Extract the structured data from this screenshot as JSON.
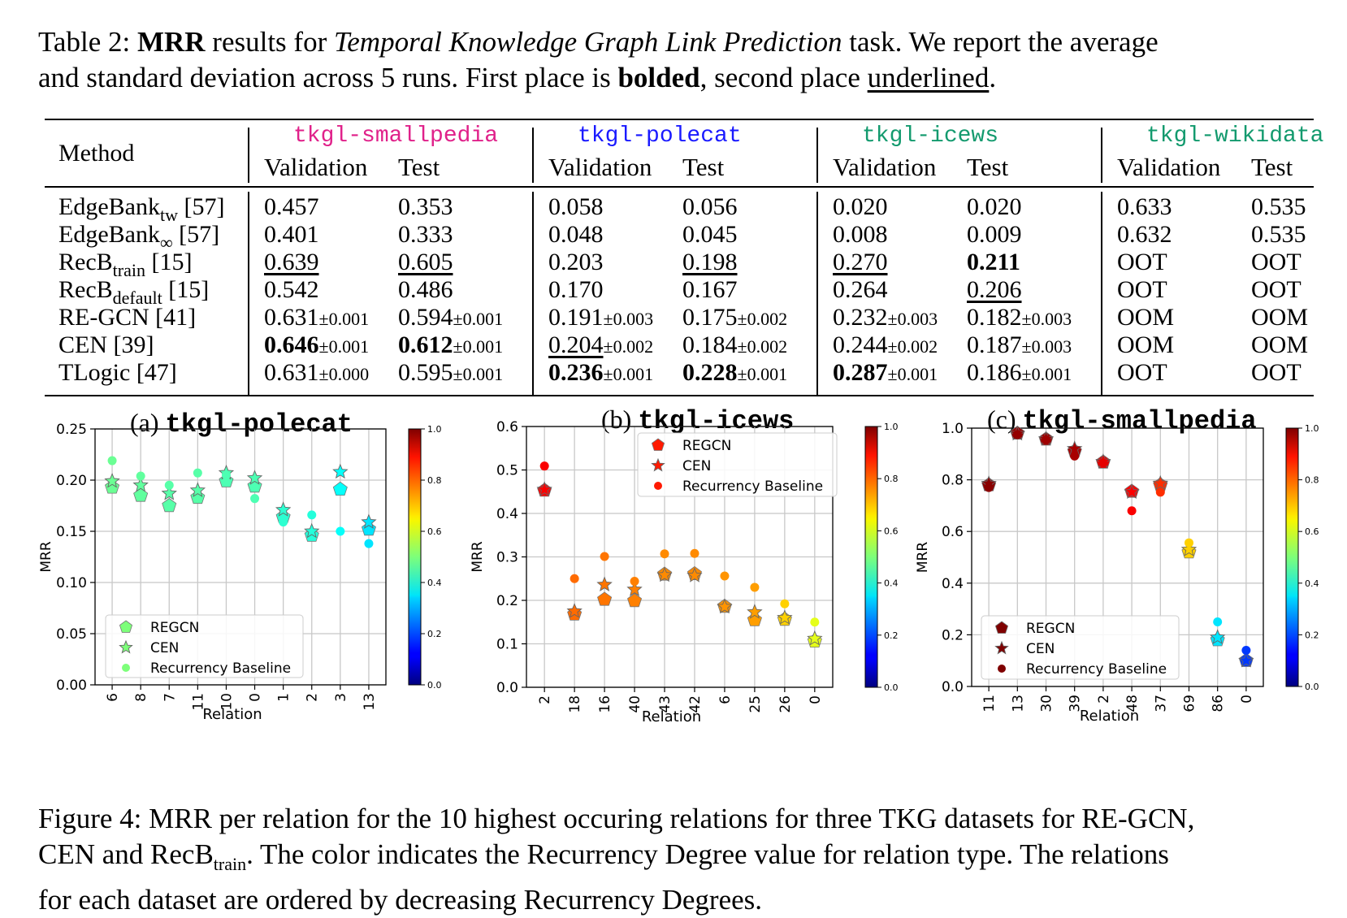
{
  "table_caption": {
    "prefix": "Table 2: ",
    "bold1": "MRR",
    "t1": " results for ",
    "italic1": "Temporal Knowledge Graph Link Prediction",
    "t2": " task. We report the average",
    "line2a": "and standard deviation across 5 runs. First place is ",
    "bold2": "bolded",
    "line2b": ", second place ",
    "underlined": "underlined",
    "line2c": "."
  },
  "table": {
    "method_header": "Method",
    "datasets": [
      {
        "name": "tkgl-smallpedia",
        "color": "#e0218a"
      },
      {
        "name": "tkgl-polecat",
        "color": "#1a1aff"
      },
      {
        "name": "tkgl-icews",
        "color": "#139a6e"
      },
      {
        "name": "tkgl-wikidata",
        "color": "#139a6e"
      }
    ],
    "val_label": "Validation",
    "test_label": "Test",
    "rows": [
      {
        "m": "EdgeBank",
        "sub": "tw",
        "ref": " [57]",
        "cells": [
          [
            "0.457",
            ""
          ],
          [
            "0.353",
            ""
          ],
          [
            "0.058",
            ""
          ],
          [
            "0.056",
            ""
          ],
          [
            "0.020",
            ""
          ],
          [
            "0.020",
            ""
          ],
          [
            "0.633",
            ""
          ],
          [
            "0.535",
            ""
          ]
        ]
      },
      {
        "m": "EdgeBank",
        "sub": "∞",
        "ref": " [57]",
        "cells": [
          [
            "0.401",
            ""
          ],
          [
            "0.333",
            ""
          ],
          [
            "0.048",
            ""
          ],
          [
            "0.045",
            ""
          ],
          [
            "0.008",
            ""
          ],
          [
            "0.009",
            ""
          ],
          [
            "0.632",
            ""
          ],
          [
            "0.535",
            ""
          ]
        ]
      },
      {
        "m": "RecB",
        "sub": "train",
        "ref": " [15]",
        "cells": [
          [
            "0.639",
            "",
            "u"
          ],
          [
            "0.605",
            "",
            "u"
          ],
          [
            "0.203",
            ""
          ],
          [
            "0.198",
            "",
            "u"
          ],
          [
            "0.270",
            "",
            "u"
          ],
          [
            "0.211",
            "",
            "b"
          ],
          [
            "OOT",
            ""
          ],
          [
            "OOT",
            ""
          ]
        ]
      },
      {
        "m": "RecB",
        "sub": "default",
        "ref": " [15]",
        "cells": [
          [
            "0.542",
            ""
          ],
          [
            "0.486",
            ""
          ],
          [
            "0.170",
            ""
          ],
          [
            "0.167",
            ""
          ],
          [
            "0.264",
            ""
          ],
          [
            "0.206",
            "",
            "u"
          ],
          [
            "OOT",
            ""
          ],
          [
            "OOT",
            ""
          ]
        ]
      },
      {
        "m": "RE-GCN",
        "sub": "",
        "ref": " [41]",
        "cells": [
          [
            "0.631",
            "±0.001"
          ],
          [
            "0.594",
            "±0.001"
          ],
          [
            "0.191",
            "±0.003"
          ],
          [
            "0.175",
            "±0.002"
          ],
          [
            "0.232",
            "±0.003"
          ],
          [
            "0.182",
            "±0.003"
          ],
          [
            "OOM",
            ""
          ],
          [
            "OOM",
            ""
          ]
        ]
      },
      {
        "m": "CEN",
        "sub": "",
        "ref": " [39]",
        "cells": [
          [
            "0.646",
            "±0.001",
            "b"
          ],
          [
            "0.612",
            "±0.001",
            "b"
          ],
          [
            "0.204",
            "±0.002",
            "u"
          ],
          [
            "0.184",
            "±0.002"
          ],
          [
            "0.244",
            "±0.002"
          ],
          [
            "0.187",
            "±0.003"
          ],
          [
            "OOM",
            ""
          ],
          [
            "OOM",
            ""
          ]
        ]
      },
      {
        "m": "TLogic",
        "sub": "",
        "ref": " [47]",
        "cells": [
          [
            "0.631",
            "±0.000"
          ],
          [
            "0.595",
            "±0.001"
          ],
          [
            "0.236",
            "±0.001",
            "b"
          ],
          [
            "0.228",
            "±0.001",
            "b"
          ],
          [
            "0.287",
            "±0.001",
            "b"
          ],
          [
            "0.186",
            "±0.001"
          ],
          [
            "OOT",
            ""
          ],
          [
            "OOT",
            ""
          ]
        ]
      }
    ]
  },
  "figures": {
    "a": {
      "label": "(a) ",
      "dataset": "tkgl-polecat"
    },
    "b": {
      "label": "(b) ",
      "dataset": "tkgl-icews"
    },
    "c": {
      "label": "(c) ",
      "dataset": "tkgl-smallpedia"
    }
  },
  "chart_data": [
    {
      "type": "scatter",
      "title": "(a) tkgl-polecat",
      "xlabel": "Relation",
      "ylabel": "MRR",
      "ylim": [
        0,
        0.25
      ],
      "yticks": [
        "0.00",
        "0.05",
        "0.10",
        "0.15",
        "0.20",
        "0.25"
      ],
      "categories": [
        "6",
        "8",
        "7",
        "11",
        "10",
        "0",
        "1",
        "2",
        "3",
        "13"
      ],
      "series": [
        {
          "name": "REGCN",
          "values": [
            0.193,
            0.185,
            0.175,
            0.183,
            0.199,
            0.194,
            0.164,
            0.146,
            0.191,
            0.152
          ]
        },
        {
          "name": "CEN",
          "values": [
            0.199,
            0.195,
            0.187,
            0.19,
            0.207,
            0.202,
            0.171,
            0.15,
            0.208,
            0.159
          ]
        },
        {
          "name": "Recurrency Baseline",
          "values": [
            0.219,
            0.204,
            0.195,
            0.207,
            0.205,
            0.182,
            0.159,
            0.166,
            0.15,
            0.138
          ]
        }
      ],
      "recurrency_degree": [
        0.48,
        0.47,
        0.46,
        0.46,
        0.45,
        0.45,
        0.42,
        0.41,
        0.38,
        0.35
      ],
      "colorbar": {
        "ticks": [
          "0.0",
          "0.2",
          "0.4",
          "0.6",
          "0.8",
          "1.0"
        ]
      },
      "legend": "lower-left"
    },
    {
      "type": "scatter",
      "title": "(b) tkgl-icews",
      "xlabel": "Relation",
      "ylabel": "MRR",
      "ylim": [
        0,
        0.6
      ],
      "yticks": [
        "0.0",
        "0.1",
        "0.2",
        "0.3",
        "0.4",
        "0.5",
        "0.6"
      ],
      "categories": [
        "2",
        "18",
        "16",
        "40",
        "43",
        "42",
        "6",
        "25",
        "26",
        "0"
      ],
      "series": [
        {
          "name": "REGCN",
          "values": [
            0.453,
            0.168,
            0.202,
            0.199,
            0.26,
            0.261,
            0.186,
            0.155,
            0.156,
            0.106
          ]
        },
        {
          "name": "CEN",
          "values": [
            0.455,
            0.175,
            0.236,
            0.225,
            0.258,
            0.257,
            0.185,
            0.173,
            0.16,
            0.112
          ]
        },
        {
          "name": "Recurrency Baseline",
          "values": [
            0.509,
            0.25,
            0.301,
            0.244,
            0.307,
            0.308,
            0.256,
            0.23,
            0.192,
            0.15
          ]
        }
      ],
      "recurrency_degree": [
        0.88,
        0.77,
        0.76,
        0.75,
        0.74,
        0.74,
        0.73,
        0.72,
        0.67,
        0.6
      ],
      "colorbar": {
        "ticks": [
          "0.0",
          "0.2",
          "0.4",
          "0.6",
          "0.8",
          "1.0"
        ]
      },
      "legend": "top-right"
    },
    {
      "type": "scatter",
      "title": "(c) tkgl-smallpedia",
      "xlabel": "Relation",
      "ylabel": "MRR",
      "ylim": [
        0,
        1.0
      ],
      "yticks": [
        "0.0",
        "0.2",
        "0.4",
        "0.6",
        "0.8",
        "1.0"
      ],
      "categories": [
        "11",
        "13",
        "30",
        "39",
        "2",
        "48",
        "37",
        "69",
        "86",
        "0"
      ],
      "series": [
        {
          "name": "REGCN",
          "values": [
            0.78,
            0.98,
            0.957,
            0.91,
            0.868,
            0.755,
            0.78,
            0.52,
            0.18,
            0.1
          ]
        },
        {
          "name": "CEN",
          "values": [
            0.785,
            0.978,
            0.958,
            0.92,
            0.87,
            0.752,
            0.786,
            0.53,
            0.19,
            0.1
          ]
        },
        {
          "name": "Recurrency Baseline",
          "values": [
            0.77,
            0.975,
            0.955,
            0.892,
            0.865,
            0.68,
            0.752,
            0.556,
            0.25,
            0.14
          ]
        }
      ],
      "recurrency_degree": [
        0.99,
        0.98,
        0.97,
        0.96,
        0.9,
        0.88,
        0.83,
        0.67,
        0.35,
        0.18
      ],
      "colorbar": {
        "ticks": [
          "0.0",
          "0.2",
          "0.4",
          "0.6",
          "0.8",
          "1.0"
        ]
      },
      "legend": "lower-left"
    }
  ],
  "figure_caption": {
    "line1": "Figure 4: MRR per relation for the 10 highest occuring relations for three TKG datasets for RE-GCN,",
    "line2a": "CEN and RecB",
    "line2sub": "train",
    "line2b": ". The color indicates the Recurrency Degree value for relation type. The relations",
    "line3": "for each dataset are ordered by decreasing Recurrency Degrees."
  }
}
